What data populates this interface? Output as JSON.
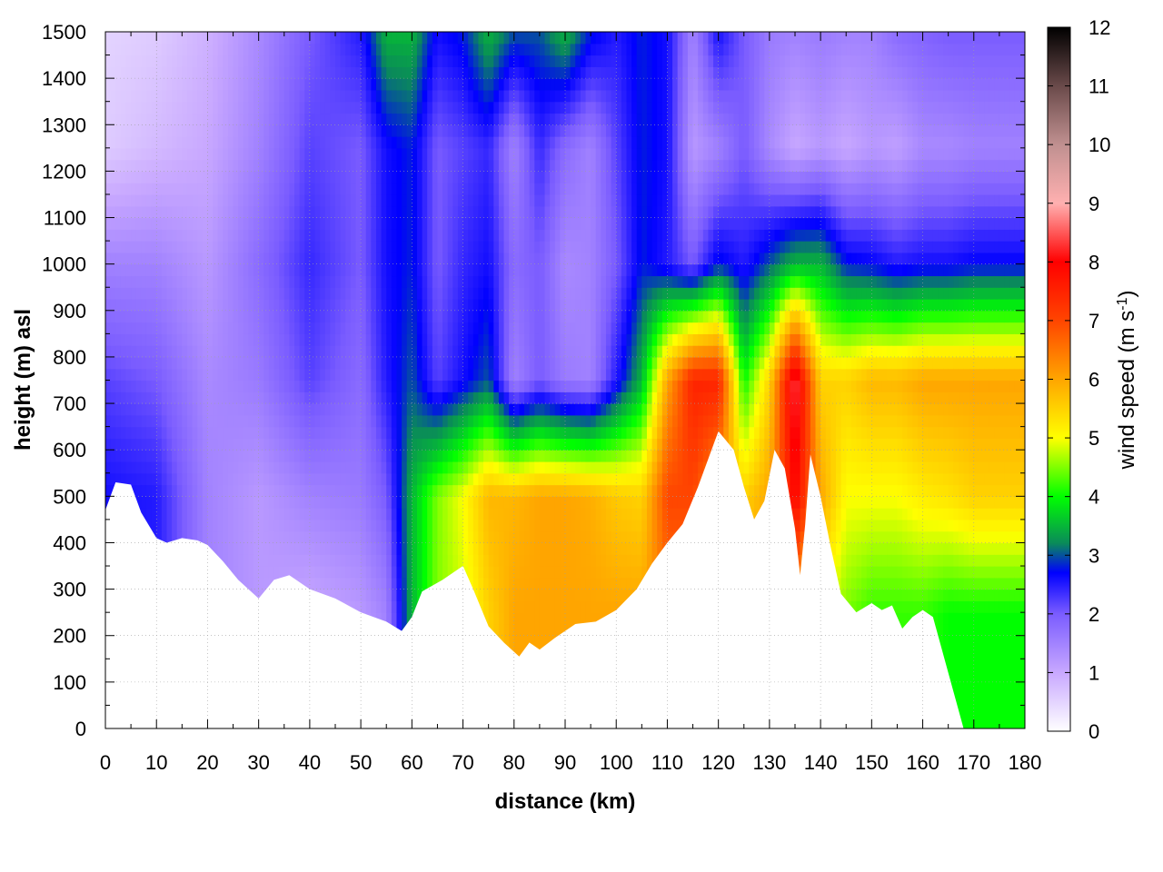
{
  "chart_data": {
    "type": "heatmap",
    "title": "",
    "xlabel": "distance (km)",
    "ylabel": "height (m) asl",
    "xlim": [
      0,
      180
    ],
    "ylim": [
      0,
      1500
    ],
    "x_ticks": [
      0,
      10,
      20,
      30,
      40,
      50,
      60,
      70,
      80,
      90,
      100,
      110,
      120,
      130,
      140,
      150,
      160,
      170,
      180
    ],
    "y_ticks": [
      0,
      100,
      200,
      300,
      400,
      500,
      600,
      700,
      800,
      900,
      1000,
      1100,
      1200,
      1300,
      1400,
      1500
    ],
    "grid": true,
    "colorbar": {
      "label_text": "wind speed (m s",
      "label_sup": "-1",
      "label_close": ")",
      "range": [
        0,
        12
      ],
      "ticks": [
        0,
        1,
        2,
        3,
        4,
        5,
        6,
        7,
        8,
        9,
        10,
        11,
        12
      ],
      "stops": [
        {
          "value": 0,
          "color": "#ffffff"
        },
        {
          "value": 1,
          "color": "#c8a8ff"
        },
        {
          "value": 2,
          "color": "#7a5cff"
        },
        {
          "value": 2.7,
          "color": "#0000ff"
        },
        {
          "value": 3.2,
          "color": "#0a8a5a"
        },
        {
          "value": 4,
          "color": "#00ff00"
        },
        {
          "value": 5,
          "color": "#ffff00"
        },
        {
          "value": 6,
          "color": "#ffa500"
        },
        {
          "value": 7,
          "color": "#ff4500"
        },
        {
          "value": 8,
          "color": "#ff0000"
        },
        {
          "value": 9,
          "color": "#ffb0b0"
        },
        {
          "value": 10,
          "color": "#c09090"
        },
        {
          "value": 11,
          "color": "#6a4a4a"
        },
        {
          "value": 12,
          "color": "#000000"
        }
      ]
    },
    "terrain_height": [
      [
        0,
        470
      ],
      [
        2,
        530
      ],
      [
        5,
        525
      ],
      [
        7,
        465
      ],
      [
        10,
        410
      ],
      [
        12,
        400
      ],
      [
        15,
        410
      ],
      [
        18,
        405
      ],
      [
        20,
        395
      ],
      [
        23,
        360
      ],
      [
        26,
        320
      ],
      [
        30,
        280
      ],
      [
        33,
        320
      ],
      [
        36,
        330
      ],
      [
        40,
        300
      ],
      [
        45,
        280
      ],
      [
        50,
        250
      ],
      [
        55,
        230
      ],
      [
        58,
        210
      ],
      [
        60,
        240
      ],
      [
        62,
        295
      ],
      [
        66,
        320
      ],
      [
        70,
        350
      ],
      [
        72,
        300
      ],
      [
        75,
        220
      ],
      [
        78,
        185
      ],
      [
        81,
        155
      ],
      [
        83,
        185
      ],
      [
        85,
        170
      ],
      [
        88,
        195
      ],
      [
        92,
        225
      ],
      [
        96,
        230
      ],
      [
        100,
        255
      ],
      [
        104,
        300
      ],
      [
        107,
        355
      ],
      [
        110,
        400
      ],
      [
        113,
        440
      ],
      [
        116,
        520
      ],
      [
        120,
        640
      ],
      [
        123,
        600
      ],
      [
        125,
        520
      ],
      [
        127,
        450
      ],
      [
        129,
        490
      ],
      [
        131,
        600
      ],
      [
        133,
        560
      ],
      [
        135,
        430
      ],
      [
        136,
        330
      ],
      [
        137,
        440
      ],
      [
        138,
        590
      ],
      [
        140,
        500
      ],
      [
        142,
        390
      ],
      [
        144,
        290
      ],
      [
        147,
        250
      ],
      [
        150,
        270
      ],
      [
        152,
        255
      ],
      [
        154,
        265
      ],
      [
        156,
        215
      ],
      [
        158,
        240
      ],
      [
        160,
        255
      ],
      [
        162,
        240
      ],
      [
        165,
        120
      ],
      [
        167,
        40
      ],
      [
        168,
        0
      ],
      [
        180,
        0
      ]
    ],
    "speed_field": {
      "distance_km": [
        0,
        10,
        20,
        30,
        40,
        50,
        55,
        60,
        65,
        70,
        75,
        80,
        85,
        90,
        95,
        100,
        105,
        110,
        115,
        120,
        125,
        130,
        135,
        140,
        145,
        150,
        155,
        160,
        165,
        170,
        175,
        180
      ],
      "height_m": [
        0,
        250,
        500,
        750,
        1000,
        1250,
        1500
      ],
      "wind_speed": [
        [
          2.5,
          2.5,
          1.5,
          1.2,
          1.0,
          1.2,
          1.5,
          3.5,
          4.5,
          4.8,
          5.5,
          6.0,
          6.0,
          6.0,
          6.0,
          6.0,
          6.0,
          6.5,
          6.5,
          6.5,
          6.0,
          6.0,
          6.0,
          5.0,
          4.5,
          4.2,
          4.2,
          4.2,
          4.0,
          4.0,
          4.0,
          4.0
        ],
        [
          2.5,
          2.5,
          1.5,
          1.2,
          1.0,
          1.2,
          1.5,
          3.5,
          4.5,
          4.8,
          5.5,
          6.0,
          6.0,
          6.0,
          6.0,
          6.0,
          6.0,
          6.5,
          6.5,
          6.5,
          6.0,
          6.0,
          6.0,
          5.0,
          4.5,
          4.2,
          4.2,
          4.2,
          4.0,
          4.0,
          4.0,
          4.0
        ],
        [
          2.6,
          2.5,
          1.5,
          1.2,
          1.5,
          1.6,
          2.0,
          3.5,
          4.5,
          5.0,
          5.8,
          5.8,
          6.0,
          6.0,
          5.9,
          5.6,
          5.5,
          7.0,
          7.0,
          6.0,
          5.5,
          6.0,
          8.0,
          6.0,
          5.0,
          5.0,
          5.0,
          5.2,
          5.3,
          5.5,
          5.5,
          5.5
        ],
        [
          2.2,
          2.0,
          1.4,
          1.6,
          2.2,
          1.8,
          2.5,
          3.0,
          2.2,
          2.6,
          3.0,
          1.5,
          2.0,
          1.6,
          1.5,
          2.5,
          3.5,
          6.0,
          7.5,
          7.5,
          4.0,
          5.5,
          8.5,
          5.5,
          5.5,
          5.8,
          5.8,
          6.0,
          6.0,
          6.0,
          6.0,
          6.0
        ],
        [
          1.5,
          1.5,
          1.2,
          1.8,
          2.4,
          2.0,
          2.6,
          2.8,
          2.0,
          2.4,
          2.6,
          1.8,
          2.0,
          1.4,
          1.5,
          2.0,
          2.8,
          2.5,
          2.0,
          2.8,
          2.5,
          3.0,
          3.5,
          3.5,
          2.8,
          2.7,
          2.5,
          2.6,
          2.6,
          2.7,
          2.7,
          2.7
        ],
        [
          0.6,
          0.8,
          1.0,
          1.5,
          2.2,
          2.0,
          2.6,
          2.8,
          2.0,
          2.2,
          2.4,
          1.5,
          2.4,
          1.8,
          1.5,
          2.2,
          2.8,
          2.6,
          1.2,
          1.5,
          2.0,
          1.4,
          1.0,
          1.2,
          1.0,
          1.2,
          1.1,
          1.4,
          1.4,
          1.5,
          1.5,
          1.5
        ],
        [
          0.5,
          0.6,
          0.9,
          1.4,
          2.0,
          2.5,
          3.5,
          3.5,
          2.6,
          2.8,
          3.5,
          3.0,
          3.0,
          3.5,
          2.8,
          2.5,
          2.8,
          2.6,
          1.5,
          2.6,
          2.0,
          1.6,
          1.5,
          1.6,
          1.5,
          1.5,
          1.8,
          1.9,
          2.0,
          2.0,
          2.0,
          2.0
        ]
      ]
    }
  }
}
